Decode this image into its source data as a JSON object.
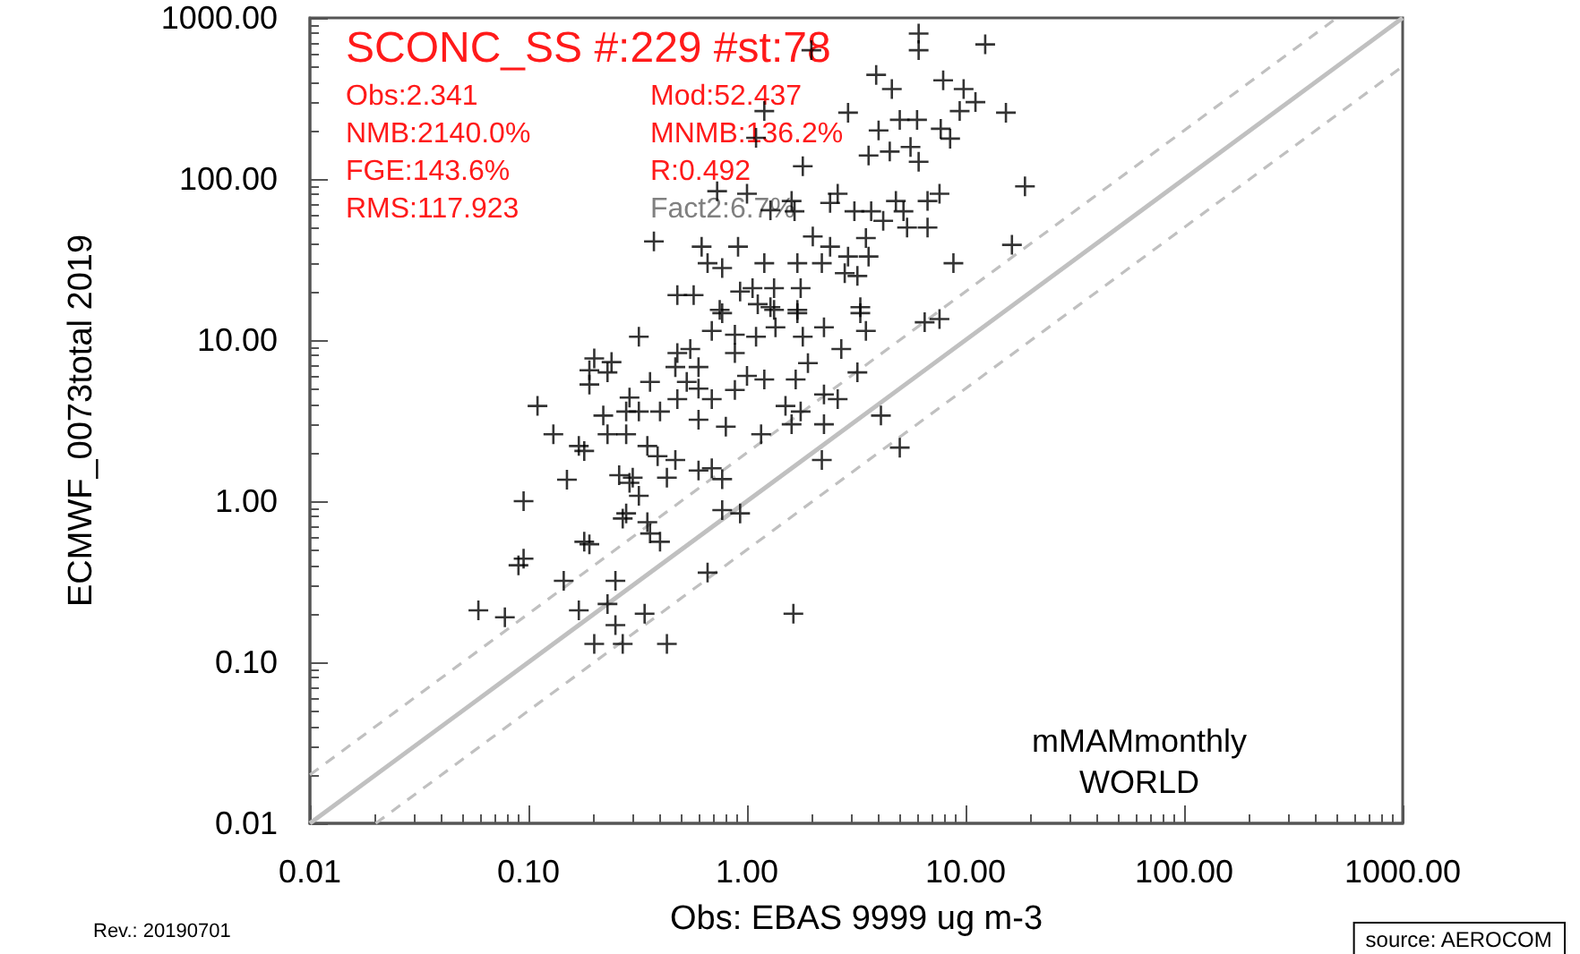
{
  "chart_data": {
    "type": "scatter",
    "title": "SCONC_SS #:229 #st:78",
    "xlabel": "Obs: EBAS 9999 ug m-3",
    "ylabel": "ECMWF_0073total 2019",
    "annotations": [
      "Obs:2.341",
      "Mod:52.437",
      "NMB:2140.0%",
      "MNMB:136.2%",
      "FGE:143.6%",
      "R:0.492",
      "RMS:117.923",
      "Fact2:6.7%",
      "mMAMmonthly",
      "WORLD",
      "Rev.: 20190701",
      "source: AEROCOM"
    ],
    "log": "xy",
    "grid": false,
    "xlim": [
      0.01,
      1000
    ],
    "ylim": [
      0.01,
      1000
    ],
    "xticks": [
      {
        "value": 0.01,
        "label": "0.01"
      },
      {
        "value": 0.1,
        "label": "0.10"
      },
      {
        "value": 1,
        "label": "1.00"
      },
      {
        "value": 10,
        "label": "10.00"
      },
      {
        "value": 100,
        "label": "100.00"
      },
      {
        "value": 1000,
        "label": "1000.00"
      }
    ],
    "yticks": [
      {
        "value": 0.01,
        "label": "0.01"
      },
      {
        "value": 0.1,
        "label": "0.10"
      },
      {
        "value": 1,
        "label": "1.00"
      },
      {
        "value": 10,
        "label": "10.00"
      },
      {
        "value": 100,
        "label": "100.00"
      },
      {
        "value": 1000,
        "label": "1000.00"
      }
    ],
    "series": [
      {
        "type": "line",
        "color": "#c0c0c0",
        "line_style": "solid",
        "marker": "none",
        "x": [
          0.01,
          1000
        ],
        "values": [
          0.01,
          1000
        ]
      },
      {
        "type": "line",
        "color": "#c0c0c0",
        "line_style": "dashed",
        "marker": "none",
        "x": [
          0.01,
          500
        ],
        "values": [
          0.02,
          1000
        ]
      },
      {
        "type": "line",
        "color": "#c0c0c0",
        "line_style": "dashed",
        "marker": "none",
        "x": [
          0.02,
          1000
        ],
        "values": [
          0.01,
          500
        ]
      },
      {
        "color": "#000000",
        "marker": "cross",
        "x": [
          6.1,
          12.3,
          6.1,
          1.97,
          3.9,
          4.6,
          7.9,
          9.8,
          11.1,
          9.4,
          15.3,
          2.9,
          5.0,
          6.0,
          1.2,
          1.1,
          4.0,
          7.7,
          8.5,
          3.6,
          4.5,
          5.6,
          6.1,
          1.8,
          18.7,
          0.73,
          1.0,
          1.6,
          2.6,
          1.28,
          1.65,
          2.4,
          3.1,
          3.7,
          4.8,
          5.2,
          6.7,
          7.6,
          4.2,
          5.4,
          6.7,
          0.375,
          0.62,
          0.91,
          2.0,
          2.4,
          3.5,
          2.9,
          0.66,
          0.77,
          1.2,
          1.7,
          2.2,
          3.6,
          8.8,
          16.3,
          2.8,
          3.2,
          0.48,
          0.57,
          0.93,
          1.06,
          1.33,
          1.76,
          0.75,
          1.12,
          1.33,
          1.7,
          3.3,
          7.6,
          0.77,
          1.28,
          1.7,
          3.3,
          0.69,
          0.88,
          1.1,
          1.35,
          1.8,
          2.25,
          3.5,
          6.5,
          0.32,
          0.2,
          0.24,
          0.19,
          0.23,
          0.19,
          0.48,
          0.55,
          0.6,
          0.47,
          0.36,
          0.53,
          0.6,
          0.88,
          0.69,
          0.88,
          1.0,
          1.2,
          1.67,
          1.9,
          2.25,
          2.6,
          3.2,
          2.7,
          0.29,
          0.28,
          0.32,
          0.4,
          0.48,
          0.11,
          0.22,
          0.23,
          0.28,
          0.13,
          0.17,
          0.18,
          0.35,
          0.39,
          0.47,
          0.6,
          0.8,
          1.16,
          1.6,
          1.76,
          2.25,
          1.5,
          4.1,
          2.2,
          5.0,
          0.15,
          0.26,
          0.3,
          0.29,
          0.43,
          0.6,
          0.69,
          0.77,
          0.32,
          0.095,
          0.28,
          0.27,
          0.35,
          0.36,
          0.4,
          0.77,
          0.93,
          0.18,
          0.19,
          0.095,
          0.09,
          0.145,
          0.25,
          0.66,
          0.059,
          0.078,
          0.17,
          0.23,
          0.34,
          0.25,
          1.63,
          0.2,
          0.27,
          0.43
        ],
        "values": [
          800,
          685,
          630,
          630,
          443,
          362,
          410,
          362,
          300,
          264,
          258,
          258,
          233,
          233,
          264,
          180,
          200,
          205,
          178,
          140,
          148,
          158,
          128,
          120,
          90,
          84,
          81,
          73,
          81,
          64,
          63,
          71,
          63,
          63,
          73,
          63,
          73,
          81,
          55,
          50,
          50,
          41,
          38,
          38,
          44,
          38,
          43,
          33,
          30,
          28,
          30,
          30,
          30,
          33,
          30,
          39,
          26,
          25,
          19,
          19,
          20,
          21,
          21,
          21,
          15.4,
          16.7,
          15.4,
          15.4,
          16,
          13.5,
          14.7,
          16,
          14.7,
          14.7,
          11.4,
          10.8,
          10.5,
          12,
          10.5,
          12,
          11.4,
          12.9,
          10.5,
          7.7,
          7.3,
          6.5,
          6.3,
          5.3,
          8.3,
          8.8,
          6.8,
          6.8,
          5.5,
          5.5,
          5.0,
          8.3,
          4.3,
          4.9,
          6.0,
          5.7,
          5.7,
          7.2,
          4.6,
          4.3,
          6.3,
          8.8,
          4.4,
          3.6,
          3.6,
          3.6,
          4.3,
          3.9,
          3.4,
          2.6,
          2.6,
          2.6,
          2.2,
          2.05,
          2.2,
          1.9,
          1.8,
          3.2,
          2.9,
          2.6,
          3.0,
          3.6,
          3.0,
          3.9,
          3.4,
          1.8,
          2.15,
          1.36,
          1.45,
          1.4,
          1.3,
          1.4,
          1.55,
          1.6,
          1.37,
          1.08,
          1.0,
          0.84,
          0.78,
          0.74,
          0.63,
          0.56,
          0.88,
          0.84,
          0.56,
          0.54,
          0.44,
          0.4,
          0.32,
          0.32,
          0.36,
          0.21,
          0.19,
          0.21,
          0.23,
          0.2,
          0.17,
          0.2,
          0.13,
          0.13,
          0.13
        ]
      }
    ]
  }
}
